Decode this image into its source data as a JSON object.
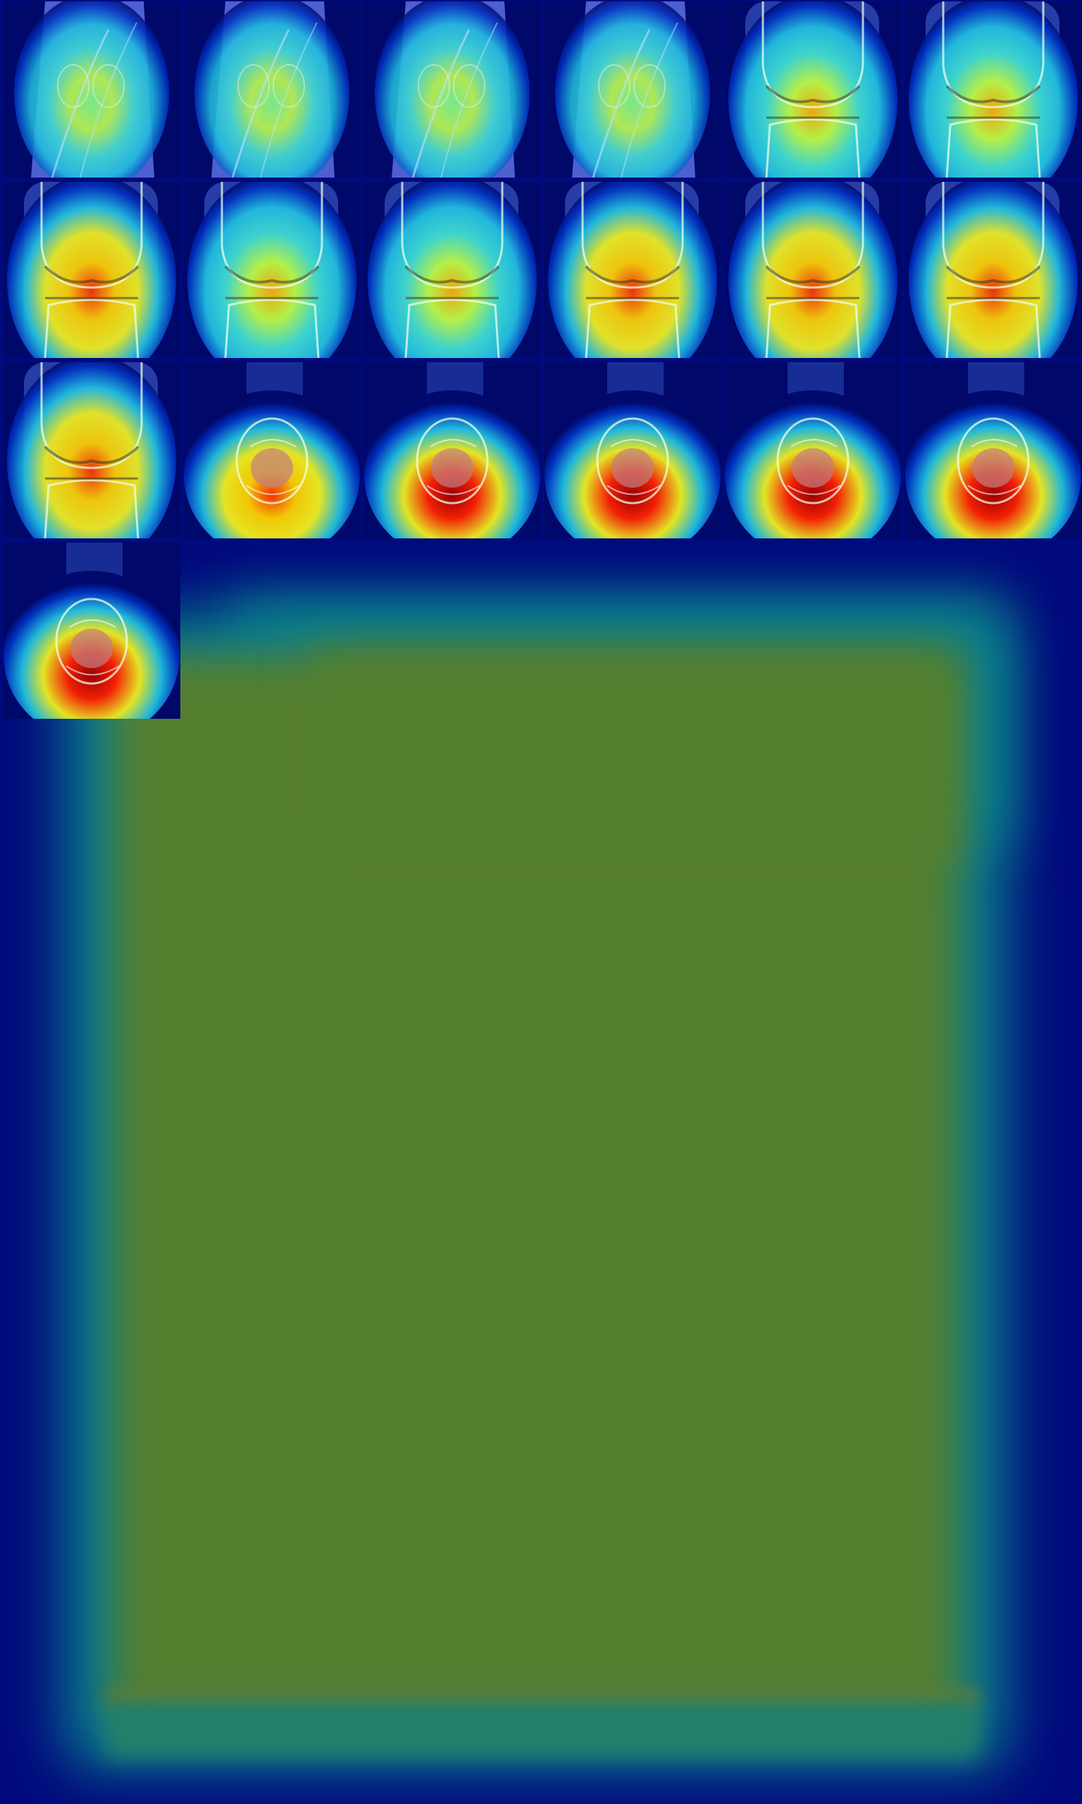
{
  "image": {
    "kind": "mri-knee-heatmap-montage",
    "grid": {
      "rows": 4,
      "cols": 6,
      "tiles_shown": 19
    },
    "colormap": [
      "#00007f",
      "#0000ff",
      "#00ffff",
      "#ffff00",
      "#ff0000",
      "#7f0000"
    ],
    "background_color": "#000a7d",
    "field_color": "#547f2f",
    "tiles": [
      {
        "view": "sagittal",
        "activation": 0.25
      },
      {
        "view": "sagittal",
        "activation": 0.2
      },
      {
        "view": "sagittal",
        "activation": 0.35
      },
      {
        "view": "sagittal",
        "activation": 0.45
      },
      {
        "view": "coronal",
        "activation": 0.6
      },
      {
        "view": "coronal",
        "activation": 0.5
      },
      {
        "view": "coronal",
        "activation": 0.65
      },
      {
        "view": "coronal",
        "activation": 0.5
      },
      {
        "view": "coronal",
        "activation": 0.5
      },
      {
        "view": "coronal",
        "activation": 0.7
      },
      {
        "view": "coronal",
        "activation": 0.8
      },
      {
        "view": "coronal",
        "activation": 0.7
      },
      {
        "view": "coronal",
        "activation": 0.65
      },
      {
        "view": "axial",
        "activation": 0.7
      },
      {
        "view": "axial",
        "activation": 0.85
      },
      {
        "view": "axial",
        "activation": 0.9
      },
      {
        "view": "axial",
        "activation": 0.85
      },
      {
        "view": "axial",
        "activation": 0.9
      },
      {
        "view": "axial",
        "activation": 0.95
      }
    ]
  }
}
